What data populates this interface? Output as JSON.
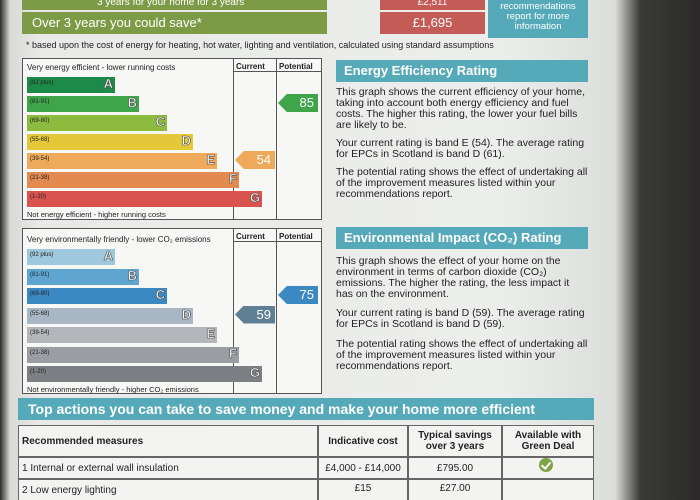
{
  "colors": {
    "teal": "#55a9b8",
    "green": "#7d9b46",
    "red": "#c55b57"
  },
  "savings": {
    "top_label": "3 years for your home for 3 years",
    "top_value": "£2,511",
    "row_label": "Over 3 years you could save*",
    "row_value": "£1,695",
    "reco_text": "recommendations report for more information"
  },
  "footnote": "* based upon the cost of energy for heating, hot water, lighting and ventilation, calculated using standard assumptions",
  "energy": {
    "top_label": "Very energy efficient - lower running costs",
    "bottom_label": "Not energy efficient - higher running costs",
    "col_current": "Current",
    "col_potential": "Potential",
    "bands": [
      {
        "range": "(92 plus)",
        "letter": "A",
        "color": "#1e8a4a"
      },
      {
        "range": "(81-91)",
        "letter": "B",
        "color": "#3fa44a"
      },
      {
        "range": "(69-80)",
        "letter": "C",
        "color": "#8dbb3f"
      },
      {
        "range": "(55-68)",
        "letter": "D",
        "color": "#e5c83a"
      },
      {
        "range": "(39-54)",
        "letter": "E",
        "color": "#eeaa5a"
      },
      {
        "range": "(21-38)",
        "letter": "F",
        "color": "#e28a50"
      },
      {
        "range": "(1-20)",
        "letter": "G",
        "color": "#d9534f"
      }
    ],
    "current": "54",
    "potential": "85",
    "current_color": "#eeaa5a",
    "potential_color": "#3fa44a"
  },
  "environment": {
    "top_label": "Very environmentally friendly - lower CO₂ emissions",
    "bottom_label": "Not environmentally friendly - higher CO₂ emissions",
    "col_current": "Current",
    "col_potential": "Potential",
    "bands": [
      {
        "range": "(92 plus)",
        "letter": "A",
        "color": "#9fc7de"
      },
      {
        "range": "(81-91)",
        "letter": "B",
        "color": "#5ea6d1"
      },
      {
        "range": "(69-80)",
        "letter": "C",
        "color": "#3b88c2"
      },
      {
        "range": "(55-68)",
        "letter": "D",
        "color": "#a9b6c4"
      },
      {
        "range": "(39-54)",
        "letter": "E",
        "color": "#b3b6ba"
      },
      {
        "range": "(21-38)",
        "letter": "F",
        "color": "#9a9ea3"
      },
      {
        "range": "(1-20)",
        "letter": "G",
        "color": "#7c8085"
      }
    ],
    "current": "59",
    "potential": "75",
    "current_color": "#5f7f95",
    "potential_color": "#3b88c2"
  },
  "energy_panel": {
    "title": "Energy Efficiency Rating",
    "p1": "This graph shows the current efficiency of your home, taking into account both energy efficiency and fuel costs. The higher this rating, the lower your fuel bills are likely to be.",
    "p2": "Your current rating is band E (54). The average rating for EPCs in Scotland is band D (61).",
    "p3": "The potential rating shows the effect of undertaking all of the improvement measures listed within your recommendations report."
  },
  "env_panel": {
    "title": "Environmental Impact (CO₂) Rating",
    "p1": "This graph shows the effect of your home on the environment in terms of carbon dioxide (CO₂) emissions. The higher the rating, the less impact it has on the environment.",
    "p2": "Your current rating is band D (59). The average rating for EPCs in Scotland is band D (59).",
    "p3": "The potential rating shows the effect of undertaking all of the improvement measures listed within your recommendations report."
  },
  "actions": {
    "title": "Top actions you can take to save money and make your home more efficient",
    "headers": [
      "Recommended measures",
      "Indicative cost",
      "Typical savings over 3 years",
      "Available with Green Deal"
    ],
    "rows": [
      {
        "measure": "1 Internal or external wall insulation",
        "cost": "£4,000 - £14,000",
        "saving": "£795.00"
      },
      {
        "measure": "2 Low energy lighting",
        "cost": "£15",
        "saving": "£27.00"
      }
    ]
  }
}
